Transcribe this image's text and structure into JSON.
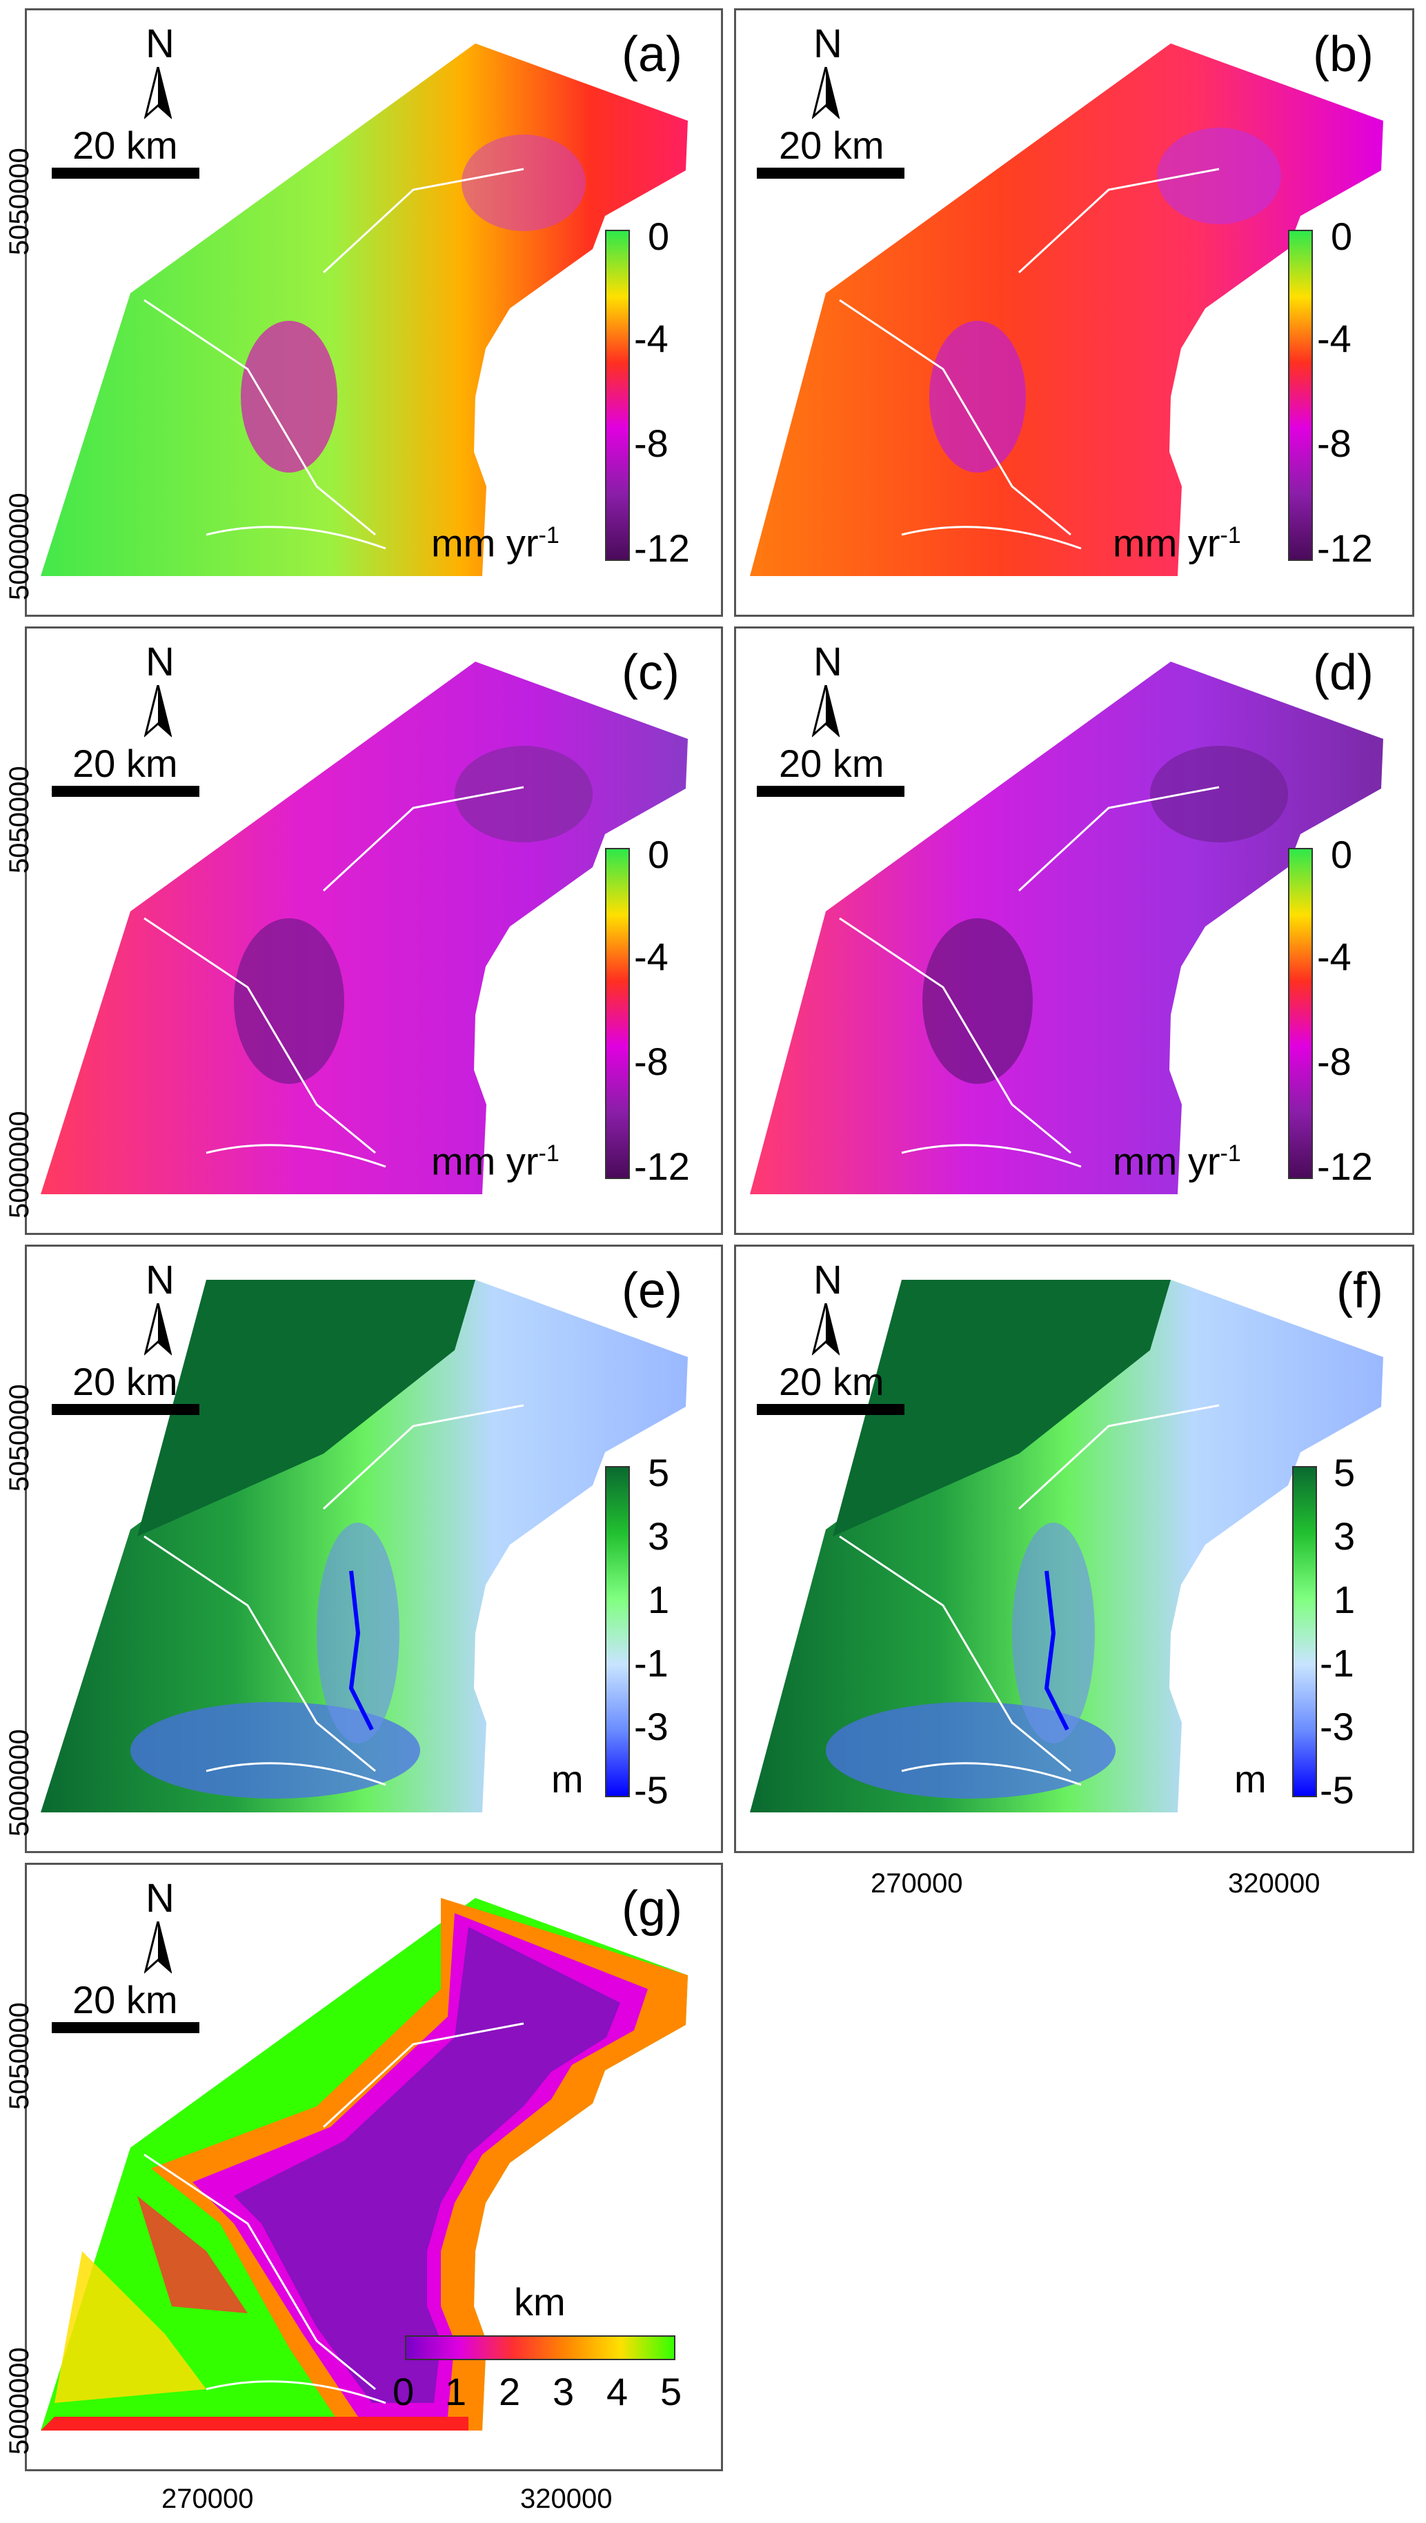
{
  "panels": [
    {
      "id": "a",
      "label": "(a)",
      "kind": "rate"
    },
    {
      "id": "b",
      "label": "(b)",
      "kind": "rate"
    },
    {
      "id": "c",
      "label": "(c)",
      "kind": "rate"
    },
    {
      "id": "d",
      "label": "(d)",
      "kind": "rate"
    },
    {
      "id": "e",
      "label": "(e)",
      "kind": "elev"
    },
    {
      "id": "f",
      "label": "(f)",
      "kind": "elev"
    },
    {
      "id": "g",
      "label": "(g)",
      "kind": "dist"
    }
  ],
  "north_label": "N",
  "scale_label": "20 km",
  "rate_legend": {
    "ticks": [
      "0",
      "-4",
      "-8",
      "-12"
    ],
    "unit": "mm yr",
    "unit_sup": "-1"
  },
  "elev_legend": {
    "ticks": [
      "5",
      "3",
      "1",
      "-1",
      "-3",
      "-5"
    ],
    "unit": "m"
  },
  "dist_legend": {
    "ticks": [
      "0",
      "1",
      "2",
      "3",
      "4",
      "5"
    ],
    "unit": "km"
  },
  "y_axis": [
    "5050000",
    "5000000"
  ],
  "x_axis": [
    "270000",
    "320000"
  ],
  "colors": {
    "rate_scale": [
      "#2ee84a",
      "#ffe000",
      "#ff3020",
      "#e000e0",
      "#8a1ea8",
      "#4a0a5a"
    ],
    "elev_scale": [
      "#0a6a30",
      "#22c030",
      "#80ff80",
      "#c8e4ff",
      "#6a8cff",
      "#0000ff"
    ],
    "dist_scale": [
      "#7a00c8",
      "#e000e0",
      "#ff3030",
      "#ff8800",
      "#ffe000",
      "#33ff00"
    ]
  }
}
